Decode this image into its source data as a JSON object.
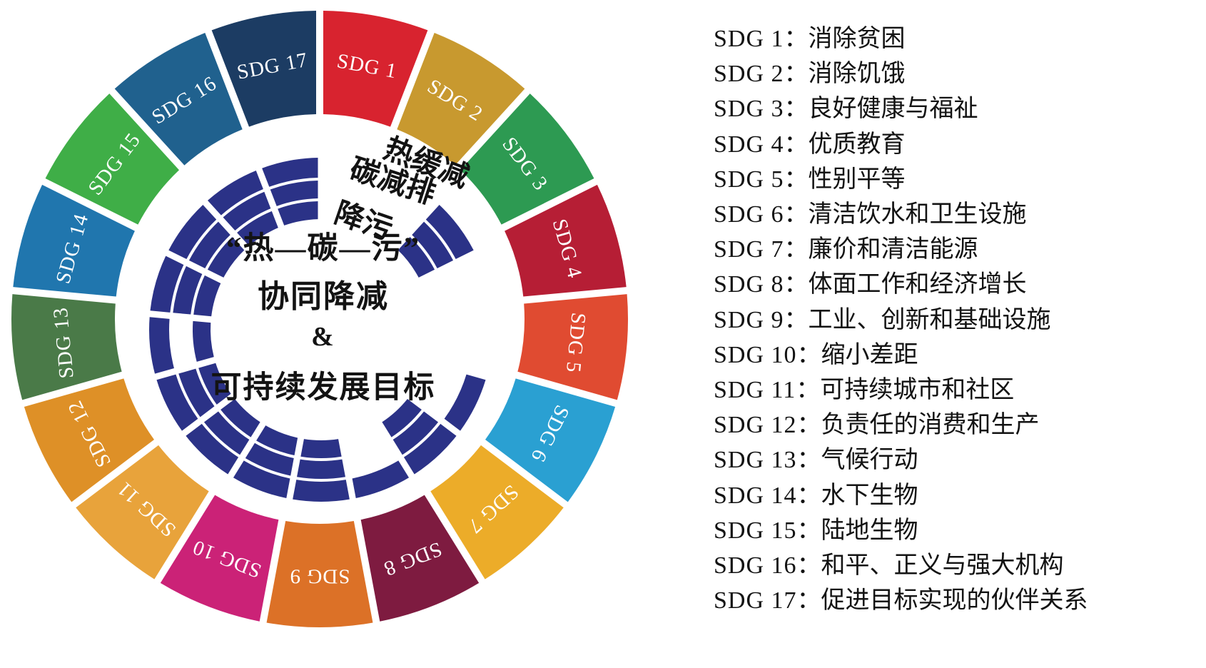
{
  "page": {
    "background": "#ffffff"
  },
  "wheel": {
    "arc_color": "#2B3287",
    "sector_label_color": "#ffffff",
    "text_color": "#131313",
    "ring_labels": [
      {
        "id": "heat",
        "text": "热缓减"
      },
      {
        "id": "carbon",
        "text": "碳减排"
      },
      {
        "id": "pollution",
        "text": "降污"
      }
    ],
    "center_lines": [
      "“热—碳—污”",
      "协同降减",
      "&",
      "可持续发展目标"
    ],
    "sectors": [
      {
        "label": "SDG 1",
        "color": "#D8232F",
        "rings": {
          "heat": false,
          "carbon": false,
          "pollution": false
        }
      },
      {
        "label": "SDG 2",
        "color": "#C8992F",
        "rings": {
          "heat": false,
          "carbon": false,
          "pollution": false
        }
      },
      {
        "label": "SDG 3",
        "color": "#2D9A52",
        "rings": {
          "heat": true,
          "carbon": true,
          "pollution": true
        }
      },
      {
        "label": "SDG 4",
        "color": "#B61E35",
        "rings": {
          "heat": false,
          "carbon": false,
          "pollution": false
        }
      },
      {
        "label": "SDG 5",
        "color": "#E04B31",
        "rings": {
          "heat": false,
          "carbon": false,
          "pollution": false
        }
      },
      {
        "label": "SDG 6",
        "color": "#2AA0D2",
        "rings": {
          "heat": true,
          "carbon": false,
          "pollution": false
        }
      },
      {
        "label": "SDG 7",
        "color": "#ECAC29",
        "rings": {
          "heat": true,
          "carbon": true,
          "pollution": true
        }
      },
      {
        "label": "SDG 8",
        "color": "#7E1B40",
        "rings": {
          "heat": true,
          "carbon": false,
          "pollution": false
        }
      },
      {
        "label": "SDG 9",
        "color": "#DC7127",
        "rings": {
          "heat": true,
          "carbon": true,
          "pollution": true
        }
      },
      {
        "label": "SDG 10",
        "color": "#CB2277",
        "rings": {
          "heat": true,
          "carbon": true,
          "pollution": true
        }
      },
      {
        "label": "SDG 11",
        "color": "#E8A33B",
        "rings": {
          "heat": true,
          "carbon": true,
          "pollution": true
        }
      },
      {
        "label": "SDG 12",
        "color": "#DE9027",
        "rings": {
          "heat": true,
          "carbon": true,
          "pollution": true
        }
      },
      {
        "label": "SDG 13",
        "color": "#4A7A48",
        "rings": {
          "heat": true,
          "carbon": false,
          "pollution": true
        }
      },
      {
        "label": "SDG 14",
        "color": "#2076AE",
        "rings": {
          "heat": true,
          "carbon": true,
          "pollution": true
        }
      },
      {
        "label": "SDG 15",
        "color": "#3FAE47",
        "rings": {
          "heat": true,
          "carbon": true,
          "pollution": true
        }
      },
      {
        "label": "SDG 16",
        "color": "#20618E",
        "rings": {
          "heat": true,
          "carbon": true,
          "pollution": true
        }
      },
      {
        "label": "SDG 17",
        "color": "#1C3C63",
        "rings": {
          "heat": true,
          "carbon": true,
          "pollution": true
        }
      }
    ]
  },
  "legend": {
    "separator": "：",
    "items": [
      {
        "goal": "SDG 1",
        "desc": "消除贫困"
      },
      {
        "goal": "SDG 2",
        "desc": "消除饥饿"
      },
      {
        "goal": "SDG 3",
        "desc": "良好健康与福祉"
      },
      {
        "goal": "SDG 4",
        "desc": "优质教育"
      },
      {
        "goal": "SDG 5",
        "desc": "性别平等"
      },
      {
        "goal": "SDG 6",
        "desc": "清洁饮水和卫生设施"
      },
      {
        "goal": "SDG 7",
        "desc": "廉价和清洁能源"
      },
      {
        "goal": "SDG 8",
        "desc": "体面工作和经济增长"
      },
      {
        "goal": "SDG 9",
        "desc": "工业、创新和基础设施"
      },
      {
        "goal": "SDG 10",
        "desc": "缩小差距"
      },
      {
        "goal": "SDG 11",
        "desc": "可持续城市和社区"
      },
      {
        "goal": "SDG 12",
        "desc": "负责任的消费和生产"
      },
      {
        "goal": "SDG 13",
        "desc": "气候行动"
      },
      {
        "goal": "SDG 14",
        "desc": "水下生物"
      },
      {
        "goal": "SDG 15",
        "desc": "陆地生物"
      },
      {
        "goal": "SDG 16",
        "desc": "和平、正义与强大机构"
      },
      {
        "goal": "SDG 17",
        "desc": "促进目标实现的伙伴关系"
      }
    ]
  }
}
